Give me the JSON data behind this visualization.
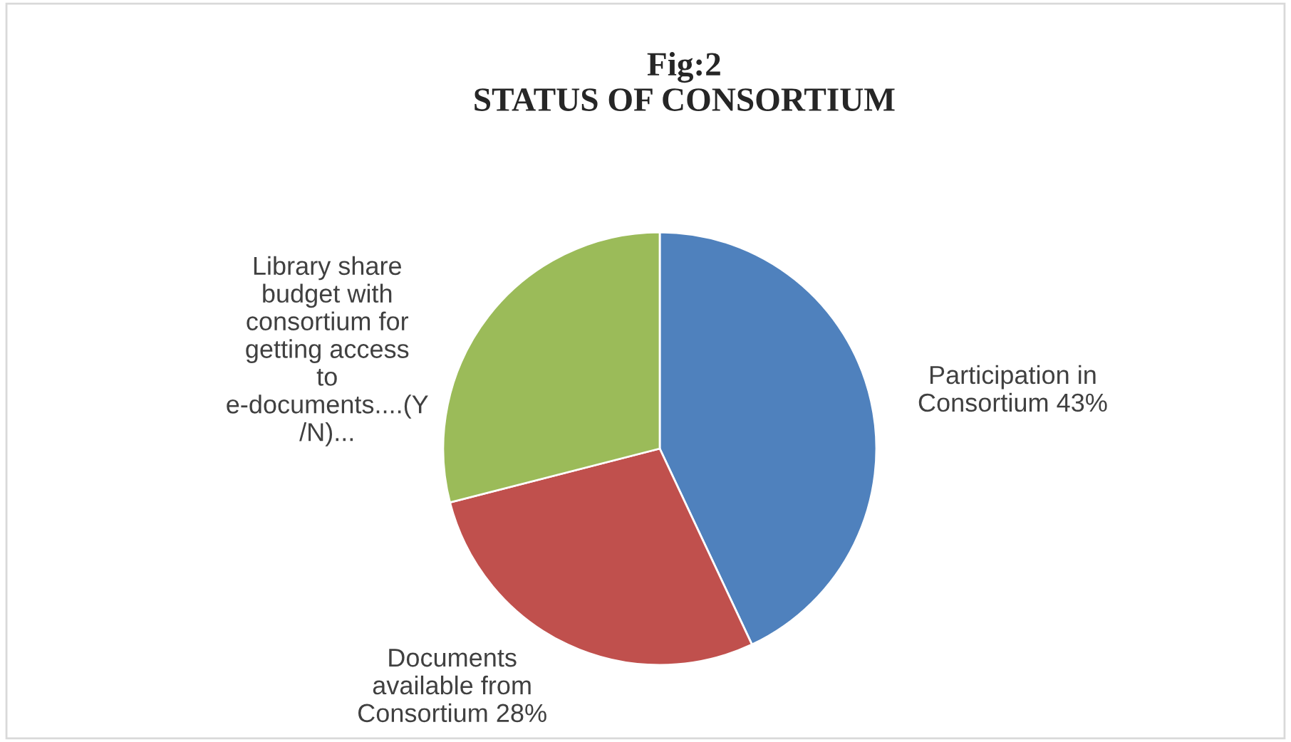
{
  "chart_data": {
    "type": "pie",
    "title": "Fig:2\nSTATUS OF CONSORTIUM",
    "categories": [
      "Participation in Consortium 43%",
      "Documents available from Consortium 28%",
      "Library share budget with consortium for getting access to e-documents....(Y /N)..."
    ],
    "values": [
      43,
      28,
      29
    ],
    "colors": [
      "#4f81bd",
      "#c0504d",
      "#9bbb59"
    ]
  }
}
